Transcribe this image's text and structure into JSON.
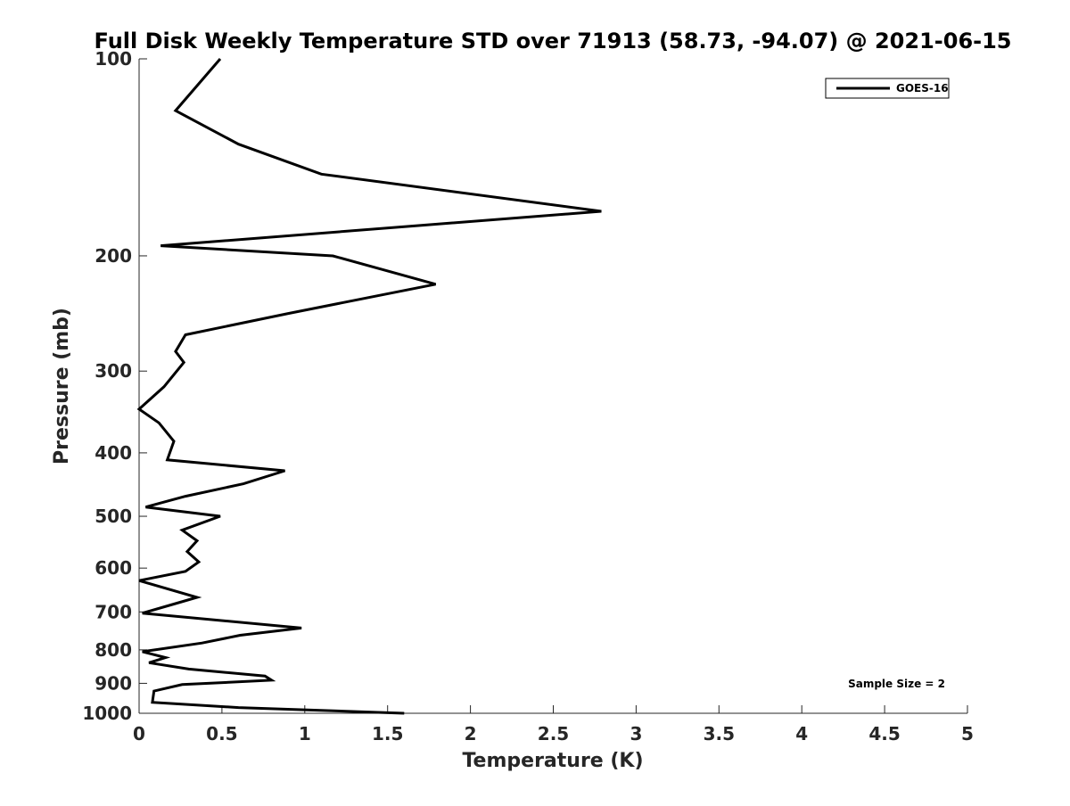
{
  "chart_data": {
    "type": "line",
    "title": "Full Disk Weekly Temperature STD over 71913 (58.73, -94.07) @ 2021-06-15",
    "xlabel": "Temperature (K)",
    "ylabel": "Pressure (mb)",
    "xlim": [
      0,
      5
    ],
    "ylim": [
      100,
      1000
    ],
    "y_scale": "log",
    "y_reversed": true,
    "xticks": [
      "0",
      "0.5",
      "1",
      "1.5",
      "2",
      "2.5",
      "3",
      "3.5",
      "4",
      "4.5",
      "5"
    ],
    "yticks": [
      "100",
      "200",
      "300",
      "400",
      "500",
      "600",
      "700",
      "800",
      "900",
      "1000"
    ],
    "grid": false,
    "legend_position": "top-right",
    "annotation": "Sample Size = 2",
    "series": [
      {
        "name": "GOES-16",
        "color": "#000000",
        "points": [
          [
            0.49,
            100
          ],
          [
            0.22,
            120
          ],
          [
            0.6,
            135
          ],
          [
            1.1,
            150
          ],
          [
            2.79,
            171
          ],
          [
            0.13,
            193
          ],
          [
            1.17,
            200
          ],
          [
            1.79,
            221
          ],
          [
            0.9,
            245
          ],
          [
            0.28,
            264
          ],
          [
            0.22,
            280
          ],
          [
            0.27,
            291
          ],
          [
            0.15,
            317
          ],
          [
            0.0,
            343
          ],
          [
            0.12,
            360
          ],
          [
            0.21,
            384
          ],
          [
            0.17,
            410
          ],
          [
            0.88,
            426
          ],
          [
            0.63,
            446
          ],
          [
            0.28,
            466
          ],
          [
            0.04,
            484
          ],
          [
            0.49,
            500
          ],
          [
            0.26,
            525
          ],
          [
            0.35,
            545
          ],
          [
            0.29,
            566
          ],
          [
            0.36,
            587
          ],
          [
            0.28,
            607
          ],
          [
            0.0,
            627
          ],
          [
            0.35,
            665
          ],
          [
            0.21,
            681
          ],
          [
            0.02,
            703
          ],
          [
            0.98,
            741
          ],
          [
            0.61,
            760
          ],
          [
            0.38,
            781
          ],
          [
            0.02,
            805
          ],
          [
            0.16,
            822
          ],
          [
            0.06,
            837
          ],
          [
            0.3,
            856
          ],
          [
            0.76,
            877
          ],
          [
            0.8,
            890
          ],
          [
            0.26,
            904
          ],
          [
            0.09,
            925
          ],
          [
            0.08,
            962
          ],
          [
            0.6,
            980
          ],
          [
            1.6,
            1000
          ]
        ]
      }
    ]
  }
}
